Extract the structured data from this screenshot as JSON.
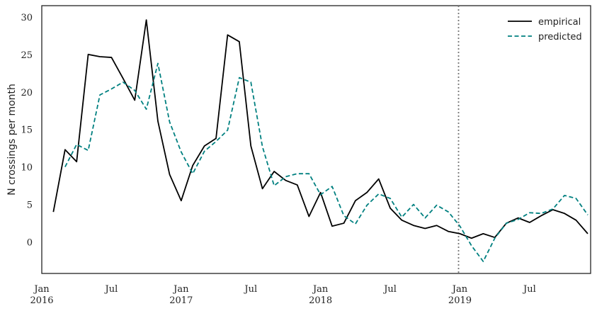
{
  "chart_data": {
    "type": "line",
    "xlabel": "",
    "ylabel": "N crossings per month",
    "ylim": [
      -4.2,
      31.5
    ],
    "xlim": [
      2016.0,
      2019.9375
    ],
    "yticks": [
      0,
      5,
      10,
      15,
      20,
      25,
      30
    ],
    "ytick_labels": [
      "0",
      "5",
      "10",
      "15",
      "20",
      "25",
      "30"
    ],
    "xticks": [
      {
        "value": 2016.0,
        "line1": "Jan",
        "line2": "2016"
      },
      {
        "value": 2016.5,
        "line1": "Jul",
        "line2": ""
      },
      {
        "value": 2017.0,
        "line1": "Jan",
        "line2": "2017"
      },
      {
        "value": 2017.5,
        "line1": "Jul",
        "line2": ""
      },
      {
        "value": 2018.0,
        "line1": "Jan",
        "line2": "2018"
      },
      {
        "value": 2018.5,
        "line1": "Jul",
        "line2": ""
      },
      {
        "value": 2019.0,
        "line1": "Jan",
        "line2": "2019"
      },
      {
        "value": 2019.5,
        "line1": "Jul",
        "line2": ""
      }
    ],
    "grid": false,
    "legend_position": "top-right",
    "vline": {
      "x": 2018.99,
      "style": "dotted",
      "color": "#777777"
    },
    "series": [
      {
        "name": "empirical",
        "color": "#000000",
        "dash": "solid",
        "x": [
          2016.083,
          2016.167,
          2016.25,
          2016.333,
          2016.417,
          2016.5,
          2016.583,
          2016.667,
          2016.75,
          2016.833,
          2016.917,
          2017.0,
          2017.083,
          2017.167,
          2017.25,
          2017.333,
          2017.417,
          2017.5,
          2017.583,
          2017.667,
          2017.75,
          2017.833,
          2017.917,
          2018.0,
          2018.083,
          2018.167,
          2018.25,
          2018.333,
          2018.417,
          2018.5,
          2018.583,
          2018.667,
          2018.75,
          2018.833,
          2018.917,
          2019.0,
          2019.083,
          2019.167,
          2019.25,
          2019.333,
          2019.417,
          2019.5,
          2019.583,
          2019.667,
          2019.75,
          2019.833,
          2019.917
        ],
        "y": [
          4.0,
          12.3,
          10.7,
          25.0,
          24.7,
          24.6,
          21.8,
          18.9,
          29.6,
          16.1,
          9.0,
          5.5,
          10.2,
          12.8,
          13.8,
          27.6,
          26.7,
          12.8,
          7.1,
          9.4,
          8.2,
          7.6,
          3.4,
          6.6,
          2.1,
          2.5,
          5.5,
          6.6,
          8.4,
          4.5,
          2.9,
          2.2,
          1.8,
          2.2,
          1.4,
          1.1,
          0.5,
          1.1,
          0.6,
          2.5,
          3.2,
          2.6,
          3.5,
          4.3,
          3.8,
          2.9,
          1.1
        ]
      },
      {
        "name": "predicted",
        "color": "#008080",
        "dash": "dashed",
        "x": [
          2016.167,
          2016.25,
          2016.333,
          2016.417,
          2016.5,
          2016.583,
          2016.667,
          2016.75,
          2016.833,
          2016.917,
          2017.0,
          2017.083,
          2017.167,
          2017.25,
          2017.333,
          2017.417,
          2017.5,
          2017.583,
          2017.667,
          2017.75,
          2017.833,
          2017.917,
          2018.0,
          2018.083,
          2018.167,
          2018.25,
          2018.333,
          2018.417,
          2018.5,
          2018.583,
          2018.667,
          2018.75,
          2018.833,
          2018.917,
          2019.0,
          2019.083,
          2019.167,
          2019.25,
          2019.333,
          2019.417,
          2019.5,
          2019.583,
          2019.667,
          2019.75,
          2019.833,
          2019.917
        ],
        "y": [
          10.0,
          13.0,
          12.2,
          19.6,
          20.4,
          21.3,
          20.2,
          17.7,
          23.8,
          16.0,
          12.0,
          9.1,
          12.1,
          13.4,
          14.9,
          21.9,
          21.3,
          12.7,
          7.5,
          8.7,
          9.1,
          9.1,
          6.3,
          7.4,
          3.5,
          2.4,
          4.9,
          6.4,
          5.8,
          3.3,
          5.0,
          3.2,
          4.9,
          4.0,
          2.1,
          -0.5,
          -2.6,
          0.5,
          2.5,
          3.0,
          3.9,
          3.8,
          4.4,
          6.2,
          5.8,
          3.6
        ]
      }
    ]
  }
}
